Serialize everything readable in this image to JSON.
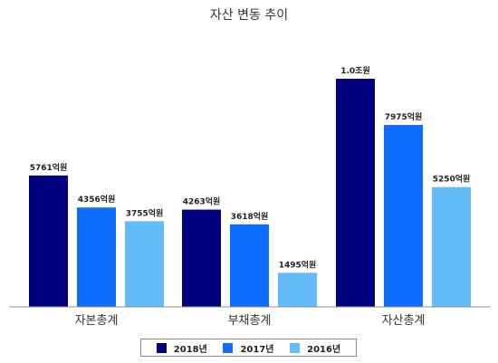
{
  "chart_data": {
    "type": "bar",
    "title": "자산 변동 추이",
    "categories": [
      "자본총계",
      "부채총계",
      "자산총계"
    ],
    "ylim": [
      0,
      10000
    ],
    "grid": false,
    "legend_placement": "bottom",
    "series": [
      {
        "name": "2018년",
        "color": "#000080",
        "values": [
          5761,
          4263,
          10000
        ],
        "labels": [
          "5761억원",
          "4263억원",
          "1.0조원"
        ]
      },
      {
        "name": "2017년",
        "color": "#0d6efd",
        "values": [
          4356,
          3618,
          7975
        ],
        "labels": [
          "4356억원",
          "3618억원",
          "7975억원"
        ]
      },
      {
        "name": "2016년",
        "color": "#63bbf7",
        "values": [
          3755,
          1495,
          5250
        ],
        "labels": [
          "3755억원",
          "1495억원",
          "5250억원"
        ]
      }
    ]
  }
}
